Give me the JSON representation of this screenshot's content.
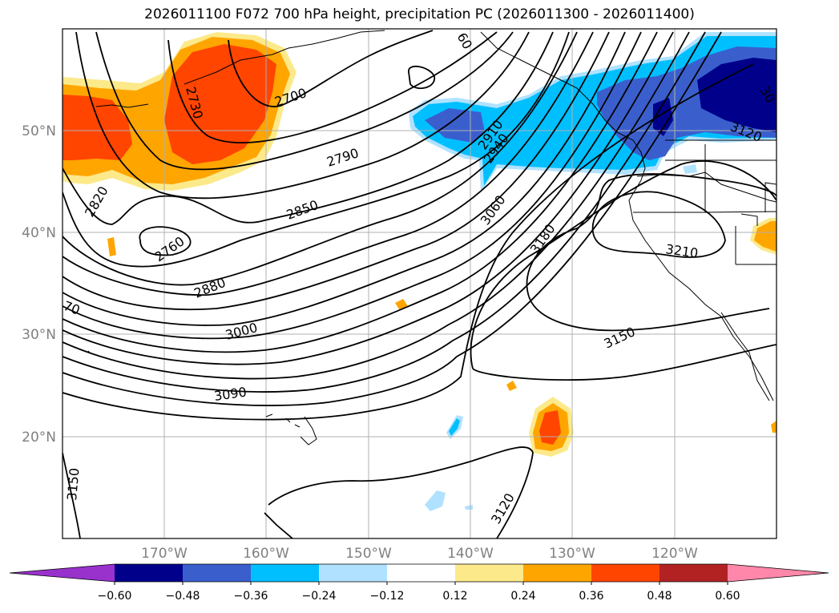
{
  "title": "2026011100 F072 700 hPa height, precipitation PC (2026011300 - 2026011400)",
  "lat_labels": [
    "50°N",
    "40°N",
    "30°N",
    "20°N"
  ],
  "lon_labels": [
    "170°W",
    "160°W",
    "150°W",
    "140°W",
    "130°W",
    "120°W"
  ],
  "contour_labels": [
    "2700",
    "2730",
    "2760",
    "2790",
    "2820",
    "2850",
    "2880",
    "2910",
    "2940",
    "3000",
    "3060",
    "3090",
    "3120",
    "3120",
    "3150",
    "3150",
    "3180",
    "3210",
    "60",
    "70",
    "30"
  ],
  "colorbar": {
    "ticks": [
      "−0.60",
      "−0.48",
      "−0.36",
      "−0.24",
      "−0.12",
      "0.12",
      "0.24",
      "0.36",
      "0.48",
      "0.60"
    ],
    "colors": [
      "#9932cc",
      "#00008b",
      "#3a5fcd",
      "#00bfff",
      "#b0e2ff",
      "#ffffff",
      "#fce98a",
      "#ffa500",
      "#ff4500",
      "#b22222",
      "#ff88aa"
    ]
  }
}
